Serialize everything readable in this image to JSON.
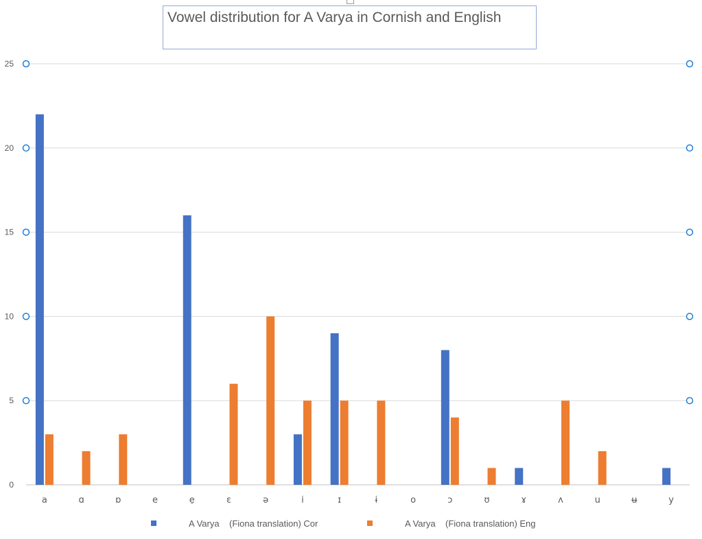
{
  "chart_data": {
    "type": "bar",
    "title": "Vowel distribution for A Varya in Cornish and English",
    "xlabel": "",
    "ylabel": "",
    "ylim": [
      0,
      25
    ],
    "yticks": [
      0,
      5,
      10,
      15,
      20,
      25
    ],
    "grid": true,
    "legend_position": "bottom",
    "categories": [
      "a",
      "ɑ",
      "ɒ",
      "e",
      "ẹ",
      "ɛ",
      "ə",
      "i",
      "ɪ",
      "ɨ",
      "o",
      "ɔ",
      "ʊ",
      "ɤ",
      "ʌ",
      "u",
      "ʉ",
      "y"
    ],
    "series": [
      {
        "name": "A Varya    (Fiona translation) Cor",
        "color": "#4472c4",
        "values": [
          22,
          0,
          0,
          0,
          16,
          0,
          0,
          3,
          9,
          0,
          0,
          8,
          0,
          1,
          0,
          0,
          0,
          1
        ]
      },
      {
        "name": "A Varya    (Fiona translation) Eng",
        "color": "#ed7d31",
        "values": [
          3,
          2,
          3,
          0,
          0,
          6,
          10,
          5,
          5,
          5,
          0,
          4,
          1,
          0,
          5,
          2,
          0,
          0
        ]
      }
    ]
  }
}
